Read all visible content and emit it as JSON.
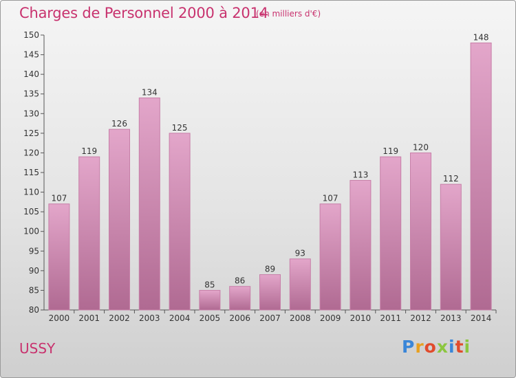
{
  "header": {
    "title": "Charges de Personnel 2000 à 2014",
    "subtitle": "(en milliers d'€)"
  },
  "footer": {
    "commune": "USSY",
    "logo_text": "Proxiti",
    "logo_colors": [
      "#3a86d8",
      "#e8a020",
      "#e14b2c",
      "#8cc63f",
      "#3a86d8",
      "#e14b2c",
      "#8cc63f"
    ]
  },
  "colors": {
    "title": "#c8326e",
    "bar_light": "#e3a6ca",
    "bar_dark": "#b06a92",
    "axis": "#555555"
  },
  "chart_data": {
    "type": "bar",
    "title": "Charges de Personnel 2000 à 2014",
    "subtitle": "(en milliers d'€)",
    "xlabel": "",
    "ylabel": "",
    "categories": [
      "2000",
      "2001",
      "2002",
      "2003",
      "2004",
      "2005",
      "2006",
      "2007",
      "2008",
      "2009",
      "2010",
      "2011",
      "2012",
      "2013",
      "2014"
    ],
    "values": [
      107,
      119,
      126,
      134,
      125,
      85,
      86,
      89,
      93,
      107,
      113,
      119,
      120,
      112,
      148
    ],
    "ylim": [
      80,
      150
    ],
    "yticks": [
      80,
      85,
      90,
      95,
      100,
      105,
      110,
      115,
      120,
      125,
      130,
      135,
      140,
      145,
      150
    ],
    "grid": false,
    "data_labels": true
  }
}
